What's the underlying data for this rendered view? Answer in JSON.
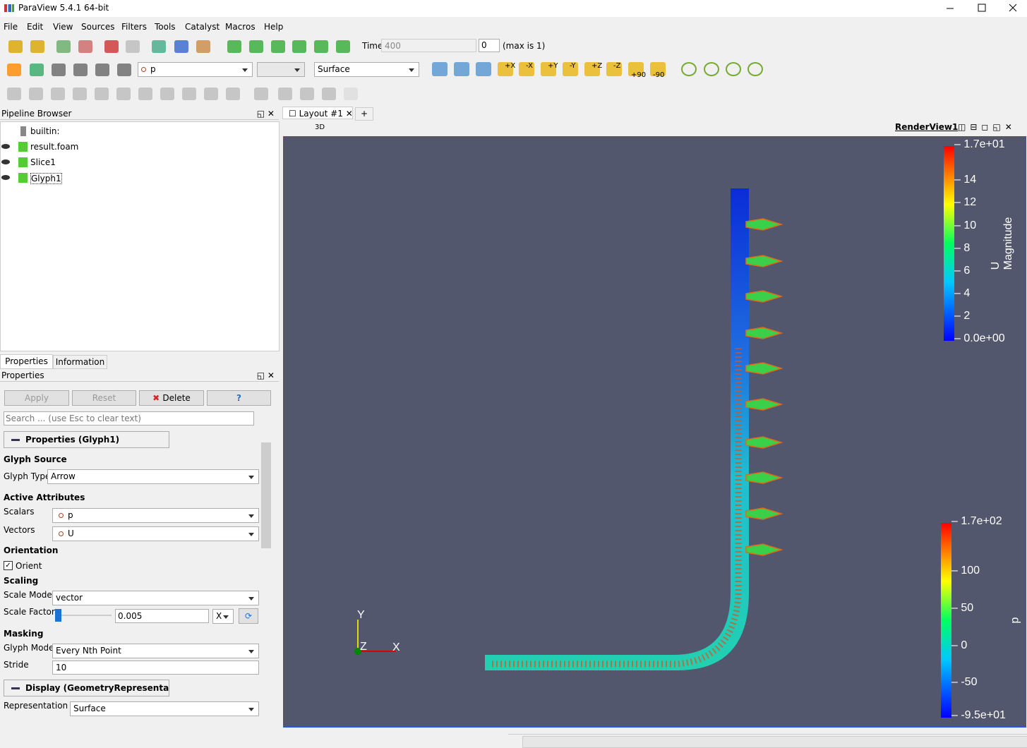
{
  "window": {
    "title": "ParaView 5.4.1 64-bit"
  },
  "menu": [
    "File",
    "Edit",
    "View",
    "Sources",
    "Filters",
    "Tools",
    "Catalyst",
    "Macros",
    "Help"
  ],
  "toolbar": {
    "time_label": "Time:",
    "time_value": "400",
    "time_index": "0",
    "time_max": "(max is 1)",
    "scalar": "p",
    "representation": "Surface",
    "camera": [
      "+X",
      "-X",
      "+Y",
      "-Y",
      "+Z",
      "-Z",
      "+90",
      "-90"
    ]
  },
  "pipeline": {
    "title": "Pipeline Browser",
    "items": [
      "builtin:",
      "result.foam",
      "Slice1",
      "Glyph1"
    ]
  },
  "tabs": [
    "Properties",
    "Information"
  ],
  "properties": {
    "title": "Properties",
    "apply": "Apply",
    "reset": "Reset",
    "delete": "Delete",
    "help": "?",
    "search": "Search ... (use Esc to clear text)",
    "section_title": "Properties (Glyph1)",
    "glyph_source": {
      "heading": "Glyph Source",
      "glyph_type_label": "Glyph Type",
      "glyph_type": "Arrow"
    },
    "active_attributes": {
      "heading": "Active Attributes",
      "scalars_label": "Scalars",
      "scalars": "p",
      "vectors_label": "Vectors",
      "vectors": "U"
    },
    "orientation": {
      "heading": "Orientation",
      "orient": "Orient"
    },
    "scaling": {
      "heading": "Scaling",
      "scale_mode_label": "Scale Mode",
      "scale_mode": "vector",
      "scale_factor_label": "Scale Factor",
      "scale_factor": "0.005",
      "scale_axis": "X"
    },
    "masking": {
      "heading": "Masking",
      "glyph_mode_label": "Glyph Mode",
      "glyph_mode": "Every Nth Point",
      "stride_label": "Stride",
      "stride": "10"
    },
    "display": {
      "section_title": "Display (GeometryRepresentatic",
      "representation_label": "Representation",
      "representation": "Surface"
    }
  },
  "view": {
    "layout_tab": "Layout #1",
    "add_tab": "+",
    "mode": "3D",
    "render_view": "RenderView1",
    "axes": {
      "y": "Y",
      "z": "Z",
      "x": "X"
    },
    "colorbar_u": {
      "title": "U Magnitude",
      "labels": [
        "1.7e+01",
        "14",
        "12",
        "10",
        "8",
        "6",
        "4",
        "2",
        "0.0e+00"
      ]
    },
    "colorbar_p": {
      "title": "p",
      "labels": [
        "1.7e+02",
        "100",
        "50",
        "0",
        "-50",
        "-9.5e+01"
      ]
    }
  }
}
